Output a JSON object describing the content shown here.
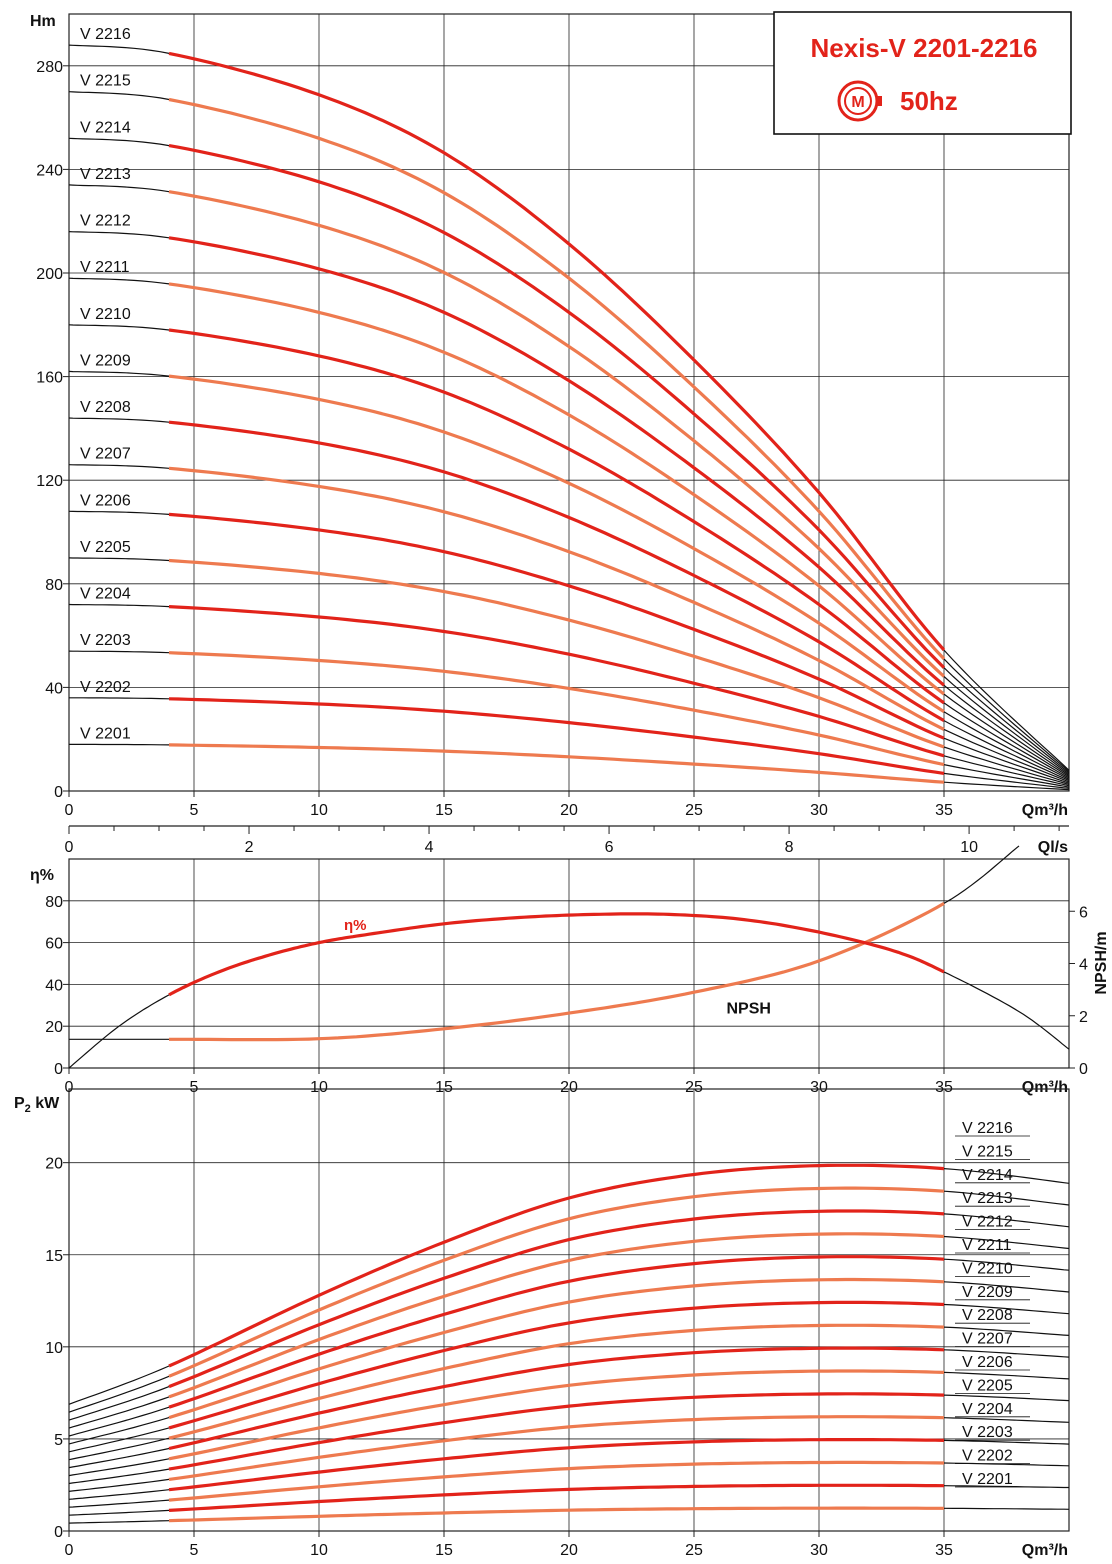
{
  "title_box": {
    "title": "Nexis-V 2201-2216",
    "freq": "50hz",
    "motor_glyph": "M",
    "accent": "#e2231a"
  },
  "colors": {
    "red": "#e2231a",
    "orange": "#ee7a4f",
    "black": "#111111",
    "grid": "#222222"
  },
  "chart_data": [
    {
      "id": "head",
      "type": "line",
      "ylabel": "Hm",
      "xlabel": "Qm³/h",
      "xlim": [
        0,
        40
      ],
      "ylim": [
        0,
        300
      ],
      "xticks": [
        0,
        5,
        10,
        15,
        20,
        25,
        30,
        35
      ],
      "yticks": [
        0,
        40,
        80,
        120,
        160,
        200,
        240,
        280
      ],
      "grid": true,
      "x": [
        0,
        4,
        10,
        15,
        20,
        25,
        30,
        35,
        40
      ],
      "series": [
        {
          "name": "V 2201",
          "values": [
            18,
            17.8,
            16.8,
            15.4,
            13.2,
            10.4,
            7.2,
            3.4,
            0.5
          ]
        },
        {
          "name": "V 2202",
          "values": [
            36,
            35.6,
            33.6,
            30.8,
            26.4,
            20.8,
            14.4,
            6.8,
            1
          ]
        },
        {
          "name": "V 2203",
          "values": [
            54,
            53.4,
            50.4,
            46.2,
            39.6,
            31.2,
            21.6,
            10.2,
            1.5
          ]
        },
        {
          "name": "V 2204",
          "values": [
            72,
            71.2,
            67.2,
            61.6,
            52.8,
            41.6,
            28.8,
            13.6,
            2
          ]
        },
        {
          "name": "V 2205",
          "values": [
            90,
            89,
            84,
            77,
            66,
            52,
            36,
            17,
            2.5
          ]
        },
        {
          "name": "V 2206",
          "values": [
            108,
            106.8,
            100.8,
            92.4,
            79.2,
            62.4,
            43.2,
            20.4,
            3
          ]
        },
        {
          "name": "V 2207",
          "values": [
            126,
            124.6,
            117.6,
            107.8,
            92.4,
            72.8,
            50.4,
            23.8,
            3.5
          ]
        },
        {
          "name": "V 2208",
          "values": [
            144,
            142.4,
            134.4,
            123.2,
            105.6,
            83.2,
            57.6,
            27.2,
            4
          ]
        },
        {
          "name": "V 2209",
          "values": [
            162,
            160.2,
            151.2,
            138.6,
            118.8,
            93.6,
            64.8,
            30.6,
            4.5
          ]
        },
        {
          "name": "V 2210",
          "values": [
            180,
            178,
            168,
            154,
            132,
            104,
            72,
            34,
            5
          ]
        },
        {
          "name": "V 2211",
          "values": [
            198,
            195.8,
            184.8,
            169.4,
            145.2,
            114.4,
            79.2,
            37.4,
            5.5
          ]
        },
        {
          "name": "V 2212",
          "values": [
            216,
            213.6,
            201.6,
            184.8,
            158.4,
            124.8,
            86.4,
            40.8,
            6
          ]
        },
        {
          "name": "V 2213",
          "values": [
            234,
            231.4,
            218.4,
            200.2,
            171.6,
            135.2,
            93.6,
            44.2,
            6.5
          ]
        },
        {
          "name": "V 2214",
          "values": [
            252,
            249.2,
            235.2,
            215.6,
            184.8,
            145.6,
            100.8,
            47.6,
            7
          ]
        },
        {
          "name": "V 2215",
          "values": [
            270,
            267,
            252,
            231,
            198,
            156,
            108,
            51,
            7.5
          ]
        },
        {
          "name": "V 2216",
          "values": [
            288,
            284.8,
            268.8,
            246.4,
            211.2,
            166.4,
            115.2,
            54.4,
            8
          ]
        }
      ]
    },
    {
      "id": "qls",
      "type": "axis",
      "xlabel": "Ql/s",
      "xlim": [
        0,
        11.11
      ],
      "xticks": [
        0,
        2,
        4,
        6,
        8,
        10
      ]
    },
    {
      "id": "eff",
      "type": "line",
      "ylabel": "η%",
      "y2label": "NPSH/m",
      "xlabel": "Qm³/h",
      "xlim": [
        0,
        40
      ],
      "ylim": [
        0,
        100
      ],
      "y2lim": [
        0,
        8
      ],
      "xticks": [
        0,
        5,
        10,
        15,
        20,
        25,
        30,
        35
      ],
      "yticks": [
        0,
        20,
        40,
        60,
        80
      ],
      "y2ticks": [
        0,
        2,
        4,
        6
      ],
      "grid": true,
      "series": [
        {
          "name": "η%",
          "axis": "left",
          "x": [
            0,
            2,
            4,
            6,
            8,
            10,
            12,
            15,
            18,
            21,
            24,
            27,
            30,
            33,
            35,
            38,
            40
          ],
          "values": [
            0,
            20,
            35,
            46,
            54,
            60,
            64,
            69,
            72,
            73.5,
            73.5,
            71,
            65,
            56,
            46,
            27,
            9
          ]
        },
        {
          "name": "NPSH",
          "axis": "right",
          "x": [
            0,
            4,
            10,
            15,
            20,
            25,
            30,
            35,
            38
          ],
          "values": [
            1.1,
            1.1,
            1.12,
            1.5,
            2.1,
            2.9,
            4.1,
            6.3,
            8.5
          ]
        }
      ]
    },
    {
      "id": "power",
      "type": "line",
      "ylabel": "P2 kW",
      "xlabel": "Qm³/h",
      "xlim": [
        0,
        40
      ],
      "ylim": [
        0,
        24
      ],
      "xticks": [
        0,
        5,
        10,
        15,
        20,
        25,
        30,
        35
      ],
      "yticks": [
        0,
        5,
        10,
        15,
        20
      ],
      "grid": true,
      "x": [
        0,
        4,
        10,
        15,
        20,
        25,
        30,
        35,
        40
      ],
      "series": [
        {
          "name": "V 2201",
          "values": [
            0.43,
            0.56,
            0.8,
            0.98,
            1.13,
            1.21,
            1.24,
            1.23,
            1.18
          ]
        },
        {
          "name": "V 2202",
          "values": [
            0.86,
            1.12,
            1.6,
            1.96,
            2.26,
            2.42,
            2.48,
            2.46,
            2.36
          ]
        },
        {
          "name": "V 2203",
          "values": [
            1.29,
            1.68,
            2.4,
            2.94,
            3.39,
            3.63,
            3.72,
            3.69,
            3.54
          ]
        },
        {
          "name": "V 2204",
          "values": [
            1.72,
            2.24,
            3.2,
            3.92,
            4.52,
            4.84,
            4.96,
            4.92,
            4.72
          ]
        },
        {
          "name": "V 2205",
          "values": [
            2.15,
            2.8,
            4.0,
            4.9,
            5.65,
            6.05,
            6.2,
            6.15,
            5.9
          ]
        },
        {
          "name": "V 2206",
          "values": [
            2.58,
            3.36,
            4.8,
            5.88,
            6.78,
            7.26,
            7.44,
            7.38,
            7.08
          ]
        },
        {
          "name": "V 2207",
          "values": [
            3.01,
            3.92,
            5.6,
            6.86,
            7.91,
            8.47,
            8.68,
            8.61,
            8.26
          ]
        },
        {
          "name": "V 2208",
          "values": [
            3.44,
            4.48,
            6.4,
            7.84,
            9.04,
            9.68,
            9.92,
            9.84,
            9.44
          ]
        },
        {
          "name": "V 2209",
          "values": [
            3.87,
            5.04,
            7.2,
            8.82,
            10.17,
            10.89,
            11.16,
            11.07,
            10.62
          ]
        },
        {
          "name": "V 2210",
          "values": [
            4.3,
            5.6,
            8.0,
            9.8,
            11.3,
            12.1,
            12.4,
            12.3,
            11.8
          ]
        },
        {
          "name": "V 2211",
          "values": [
            4.73,
            6.16,
            8.8,
            10.78,
            12.43,
            13.31,
            13.64,
            13.53,
            12.98
          ]
        },
        {
          "name": "V 2212",
          "values": [
            5.16,
            6.72,
            9.6,
            11.76,
            13.56,
            14.52,
            14.88,
            14.76,
            14.16
          ]
        },
        {
          "name": "V 2213",
          "values": [
            5.59,
            7.28,
            10.4,
            12.74,
            14.69,
            15.73,
            16.12,
            15.99,
            15.34
          ]
        },
        {
          "name": "V 2214",
          "values": [
            6.02,
            7.84,
            11.2,
            13.72,
            15.82,
            16.94,
            17.36,
            17.22,
            16.52
          ]
        },
        {
          "name": "V 2215",
          "values": [
            6.45,
            8.4,
            12.0,
            14.7,
            16.95,
            18.15,
            18.6,
            18.45,
            17.7
          ]
        },
        {
          "name": "V 2216",
          "values": [
            6.88,
            8.96,
            12.8,
            15.68,
            18.08,
            19.36,
            19.84,
            19.68,
            18.88
          ]
        }
      ]
    }
  ]
}
